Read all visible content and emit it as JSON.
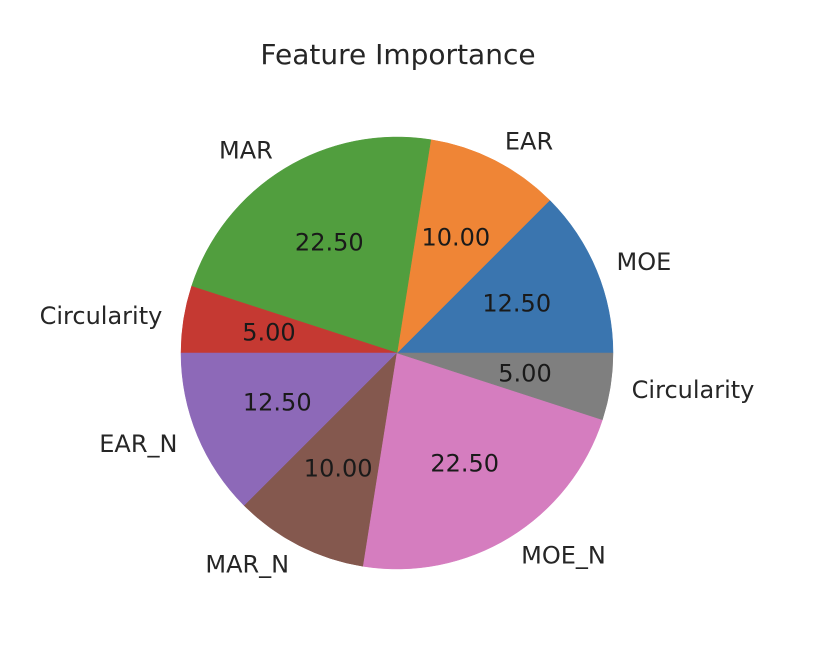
{
  "chart_data": {
    "type": "pie",
    "title": "Feature Importance",
    "slices": [
      {
        "label": "MOE",
        "value": 12.5,
        "display": "12.50",
        "color": "#3a75af"
      },
      {
        "label": "EAR",
        "value": 10.0,
        "display": "10.00",
        "color": "#ef8536"
      },
      {
        "label": "MAR",
        "value": 22.5,
        "display": "22.50",
        "color": "#519e3e"
      },
      {
        "label": "Circularity",
        "value": 5.0,
        "display": "5.00",
        "color": "#c53932"
      },
      {
        "label": "EAR_N",
        "value": 12.5,
        "display": "12.50",
        "color": "#8d69b8"
      },
      {
        "label": "MAR_N",
        "value": 10.0,
        "display": "10.00",
        "color": "#84584e"
      },
      {
        "label": "MOE_N",
        "value": 22.5,
        "display": "22.50",
        "color": "#d57dbf"
      },
      {
        "label": "Circularity",
        "value": 5.0,
        "display": "5.00",
        "color": "#7f7f7f"
      }
    ],
    "start_angle_deg": 0,
    "direction": "counterclockwise"
  }
}
